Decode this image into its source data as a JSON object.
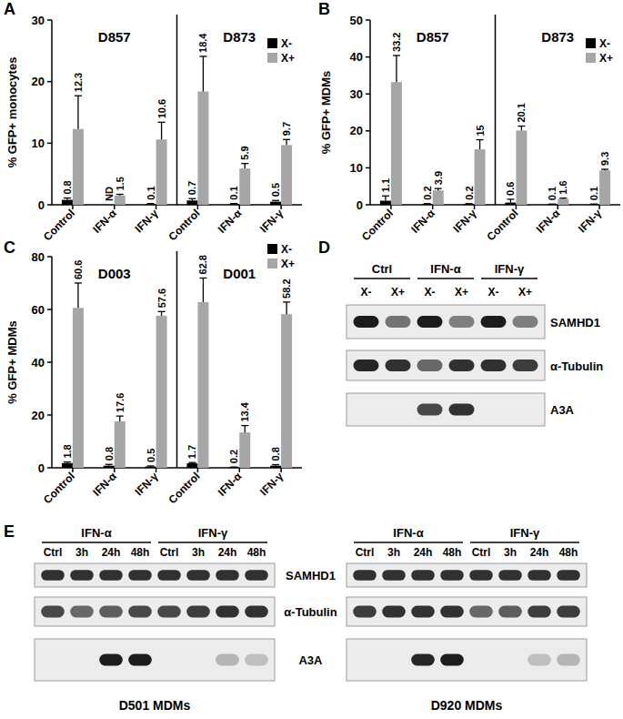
{
  "chart_data": [
    {
      "type": "bar",
      "panel": "A",
      "y_label": "% GFP+ monocytes",
      "ylim": [
        0,
        30
      ],
      "yticks": [
        0,
        10,
        20,
        30
      ],
      "data_labels": true,
      "legend": "upper right",
      "series": [
        {
          "name": "X-",
          "color": "#000000"
        },
        {
          "name": "X+",
          "color": "#a6a6a6"
        }
      ],
      "groups": [
        {
          "title": "D857",
          "categories": [
            "Control",
            "IFN-α",
            "IFN-γ"
          ],
          "series": [
            {
              "values": [
                0.8,
                null,
                0.1
              ],
              "value_labels": [
                "0.8",
                "ND",
                "0.1"
              ],
              "errors": [
                0.3,
                null,
                0.1
              ]
            },
            {
              "values": [
                12.3,
                1.5,
                10.6
              ],
              "errors": [
                5.4,
                0.2,
                2.8
              ]
            }
          ]
        },
        {
          "title": "D873",
          "categories": [
            "Control",
            "IFN-α",
            "IFN-γ"
          ],
          "series": [
            {
              "values": [
                0.7,
                0.1,
                0.5
              ],
              "errors": [
                0.3,
                0.1,
                0.2
              ]
            },
            {
              "values": [
                18.4,
                5.9,
                9.7
              ],
              "errors": [
                5.7,
                0.8,
                0.9
              ]
            }
          ]
        }
      ]
    },
    {
      "type": "bar",
      "panel": "B",
      "y_label": "% GFP+ MDMs",
      "ylim": [
        0,
        50
      ],
      "yticks": [
        0,
        10,
        20,
        30,
        40,
        50
      ],
      "data_labels": true,
      "legend": "upper right",
      "series": [
        {
          "name": "X-",
          "color": "#000000"
        },
        {
          "name": "X+",
          "color": "#a6a6a6"
        }
      ],
      "groups": [
        {
          "title": "D857",
          "categories": [
            "Control",
            "IFN-α",
            "IFN-γ"
          ],
          "series": [
            {
              "values": [
                1.1,
                0.2,
                0.2
              ],
              "errors": [
                1.3,
                0.1,
                0.1
              ]
            },
            {
              "values": [
                33.2,
                3.9,
                15
              ],
              "errors": [
                7.2,
                0.5,
                2.6
              ]
            }
          ]
        },
        {
          "title": "D873",
          "categories": [
            "Control",
            "IFN-α",
            "IFN-γ"
          ],
          "series": [
            {
              "values": [
                0.6,
                0.1,
                0.1
              ],
              "errors": [
                0.9,
                0.1,
                0.1
              ]
            },
            {
              "values": [
                20.1,
                1.6,
                9.3
              ],
              "errors": [
                1.2,
                0.2,
                0.3
              ]
            }
          ]
        }
      ]
    },
    {
      "type": "bar",
      "panel": "C",
      "y_label": "% GFP+ MDMs",
      "ylim": [
        0,
        80
      ],
      "yticks": [
        0,
        20,
        40,
        60,
        80
      ],
      "data_labels": true,
      "legend": "upper right",
      "series": [
        {
          "name": "X-",
          "color": "#000000"
        },
        {
          "name": "X+",
          "color": "#a6a6a6"
        }
      ],
      "groups": [
        {
          "title": "D003",
          "categories": [
            "Control",
            "IFN-α",
            "IFN-γ"
          ],
          "series": [
            {
              "values": [
                1.8,
                0.8,
                0.5
              ],
              "errors": [
                0.4,
                0.5,
                0.2
              ]
            },
            {
              "values": [
                60.6,
                17.6,
                57.6
              ],
              "errors": [
                9.4,
                2.0,
                1.6
              ]
            }
          ]
        },
        {
          "title": "D001",
          "categories": [
            "Control",
            "IFN-α",
            "IFN-γ"
          ],
          "series": [
            {
              "values": [
                1.7,
                0.2,
                0.8
              ],
              "errors": [
                0.3,
                0.1,
                0.4
              ]
            },
            {
              "values": [
                62.8,
                13.4,
                58.2
              ],
              "errors": [
                9.1,
                2.6,
                4.6
              ]
            }
          ]
        }
      ]
    }
  ],
  "blot_panels": [
    {
      "panel": "D",
      "row_labels": [
        "SAMHD1",
        "α-Tubulin",
        "A3A"
      ],
      "blots": [
        {
          "groups": [
            {
              "label": "Ctrl",
              "lanes": [
                "X-",
                "X+"
              ]
            },
            {
              "label": "IFN-α",
              "lanes": [
                "X-",
                "X+"
              ]
            },
            {
              "label": "IFN-γ",
              "lanes": [
                "X-",
                "X+"
              ]
            }
          ],
          "intensity": [
            [
              0.95,
              0.55,
              0.95,
              0.5,
              0.95,
              0.5
            ],
            [
              0.9,
              0.85,
              0.6,
              0.85,
              0.85,
              0.8
            ],
            [
              0,
              0,
              0.75,
              0.85,
              0,
              0
            ]
          ]
        }
      ]
    },
    {
      "panel": "E",
      "row_labels": [
        "SAMHD1",
        "α-Tubulin",
        "A3A"
      ],
      "blots": [
        {
          "caption": "D501 MDMs",
          "groups": [
            {
              "label": "IFN-α",
              "lanes": [
                "Ctrl",
                "3h",
                "24h",
                "48h"
              ]
            },
            {
              "label": "IFN-γ",
              "lanes": [
                "Ctrl",
                "3h",
                "24h",
                "48h"
              ]
            }
          ],
          "intensity": [
            [
              0.85,
              0.85,
              0.85,
              0.85,
              0.85,
              0.85,
              0.85,
              0.85
            ],
            [
              0.75,
              0.6,
              0.65,
              0.75,
              0.75,
              0.8,
              0.85,
              0.85
            ],
            [
              0,
              0,
              0.95,
              0.95,
              0,
              0,
              0.25,
              0.2
            ]
          ]
        },
        {
          "caption": "D920 MDMs",
          "groups": [
            {
              "label": "IFN-α",
              "lanes": [
                "Ctrl",
                "3h",
                "24h",
                "48h"
              ]
            },
            {
              "label": "IFN-γ",
              "lanes": [
                "Ctrl",
                "3h",
                "24h",
                "48h"
              ]
            }
          ],
          "intensity": [
            [
              0.85,
              0.85,
              0.85,
              0.85,
              0.85,
              0.85,
              0.85,
              0.85
            ],
            [
              0.8,
              0.85,
              0.85,
              0.85,
              0.6,
              0.65,
              0.8,
              0.8
            ],
            [
              0,
              0,
              0.9,
              0.95,
              0,
              0,
              0.2,
              0.25
            ]
          ]
        }
      ]
    }
  ]
}
